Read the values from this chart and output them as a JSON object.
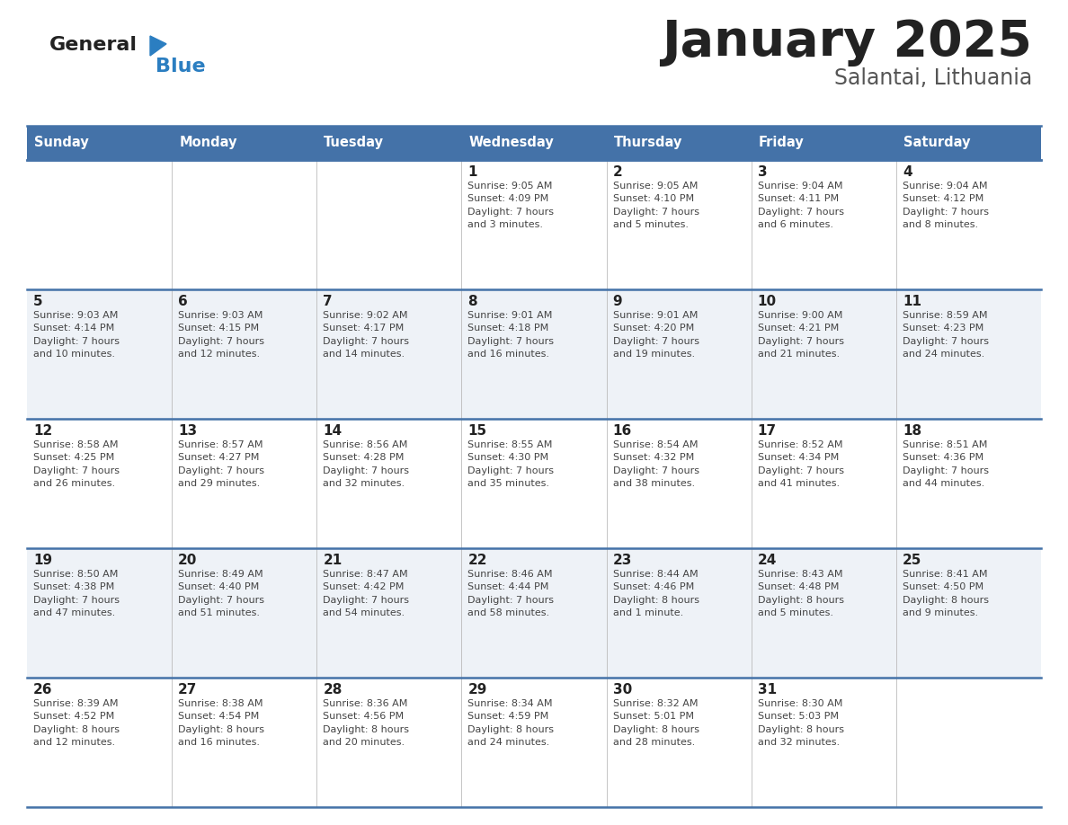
{
  "title": "January 2025",
  "subtitle": "Salantai, Lithuania",
  "header_bg": "#4472A8",
  "header_text_color": "#FFFFFF",
  "day_names": [
    "Sunday",
    "Monday",
    "Tuesday",
    "Wednesday",
    "Thursday",
    "Friday",
    "Saturday"
  ],
  "weeks": [
    [
      {
        "day": "",
        "info": ""
      },
      {
        "day": "",
        "info": ""
      },
      {
        "day": "",
        "info": ""
      },
      {
        "day": "1",
        "info": "Sunrise: 9:05 AM\nSunset: 4:09 PM\nDaylight: 7 hours\nand 3 minutes."
      },
      {
        "day": "2",
        "info": "Sunrise: 9:05 AM\nSunset: 4:10 PM\nDaylight: 7 hours\nand 5 minutes."
      },
      {
        "day": "3",
        "info": "Sunrise: 9:04 AM\nSunset: 4:11 PM\nDaylight: 7 hours\nand 6 minutes."
      },
      {
        "day": "4",
        "info": "Sunrise: 9:04 AM\nSunset: 4:12 PM\nDaylight: 7 hours\nand 8 minutes."
      }
    ],
    [
      {
        "day": "5",
        "info": "Sunrise: 9:03 AM\nSunset: 4:14 PM\nDaylight: 7 hours\nand 10 minutes."
      },
      {
        "day": "6",
        "info": "Sunrise: 9:03 AM\nSunset: 4:15 PM\nDaylight: 7 hours\nand 12 minutes."
      },
      {
        "day": "7",
        "info": "Sunrise: 9:02 AM\nSunset: 4:17 PM\nDaylight: 7 hours\nand 14 minutes."
      },
      {
        "day": "8",
        "info": "Sunrise: 9:01 AM\nSunset: 4:18 PM\nDaylight: 7 hours\nand 16 minutes."
      },
      {
        "day": "9",
        "info": "Sunrise: 9:01 AM\nSunset: 4:20 PM\nDaylight: 7 hours\nand 19 minutes."
      },
      {
        "day": "10",
        "info": "Sunrise: 9:00 AM\nSunset: 4:21 PM\nDaylight: 7 hours\nand 21 minutes."
      },
      {
        "day": "11",
        "info": "Sunrise: 8:59 AM\nSunset: 4:23 PM\nDaylight: 7 hours\nand 24 minutes."
      }
    ],
    [
      {
        "day": "12",
        "info": "Sunrise: 8:58 AM\nSunset: 4:25 PM\nDaylight: 7 hours\nand 26 minutes."
      },
      {
        "day": "13",
        "info": "Sunrise: 8:57 AM\nSunset: 4:27 PM\nDaylight: 7 hours\nand 29 minutes."
      },
      {
        "day": "14",
        "info": "Sunrise: 8:56 AM\nSunset: 4:28 PM\nDaylight: 7 hours\nand 32 minutes."
      },
      {
        "day": "15",
        "info": "Sunrise: 8:55 AM\nSunset: 4:30 PM\nDaylight: 7 hours\nand 35 minutes."
      },
      {
        "day": "16",
        "info": "Sunrise: 8:54 AM\nSunset: 4:32 PM\nDaylight: 7 hours\nand 38 minutes."
      },
      {
        "day": "17",
        "info": "Sunrise: 8:52 AM\nSunset: 4:34 PM\nDaylight: 7 hours\nand 41 minutes."
      },
      {
        "day": "18",
        "info": "Sunrise: 8:51 AM\nSunset: 4:36 PM\nDaylight: 7 hours\nand 44 minutes."
      }
    ],
    [
      {
        "day": "19",
        "info": "Sunrise: 8:50 AM\nSunset: 4:38 PM\nDaylight: 7 hours\nand 47 minutes."
      },
      {
        "day": "20",
        "info": "Sunrise: 8:49 AM\nSunset: 4:40 PM\nDaylight: 7 hours\nand 51 minutes."
      },
      {
        "day": "21",
        "info": "Sunrise: 8:47 AM\nSunset: 4:42 PM\nDaylight: 7 hours\nand 54 minutes."
      },
      {
        "day": "22",
        "info": "Sunrise: 8:46 AM\nSunset: 4:44 PM\nDaylight: 7 hours\nand 58 minutes."
      },
      {
        "day": "23",
        "info": "Sunrise: 8:44 AM\nSunset: 4:46 PM\nDaylight: 8 hours\nand 1 minute."
      },
      {
        "day": "24",
        "info": "Sunrise: 8:43 AM\nSunset: 4:48 PM\nDaylight: 8 hours\nand 5 minutes."
      },
      {
        "day": "25",
        "info": "Sunrise: 8:41 AM\nSunset: 4:50 PM\nDaylight: 8 hours\nand 9 minutes."
      }
    ],
    [
      {
        "day": "26",
        "info": "Sunrise: 8:39 AM\nSunset: 4:52 PM\nDaylight: 8 hours\nand 12 minutes."
      },
      {
        "day": "27",
        "info": "Sunrise: 8:38 AM\nSunset: 4:54 PM\nDaylight: 8 hours\nand 16 minutes."
      },
      {
        "day": "28",
        "info": "Sunrise: 8:36 AM\nSunset: 4:56 PM\nDaylight: 8 hours\nand 20 minutes."
      },
      {
        "day": "29",
        "info": "Sunrise: 8:34 AM\nSunset: 4:59 PM\nDaylight: 8 hours\nand 24 minutes."
      },
      {
        "day": "30",
        "info": "Sunrise: 8:32 AM\nSunset: 5:01 PM\nDaylight: 8 hours\nand 28 minutes."
      },
      {
        "day": "31",
        "info": "Sunrise: 8:30 AM\nSunset: 5:03 PM\nDaylight: 8 hours\nand 32 minutes."
      },
      {
        "day": "",
        "info": ""
      }
    ]
  ],
  "row_bg": [
    "#FFFFFF",
    "#EEF2F7",
    "#FFFFFF",
    "#EEF2F7",
    "#FFFFFF"
  ],
  "cell_text_color": "#444444",
  "day_num_color": "#222222",
  "border_color": "#4472A8",
  "grid_color": "#BBBBBB",
  "logo_general_color": "#222222",
  "logo_blue_color": "#2B7EC1",
  "title_color": "#222222",
  "subtitle_color": "#555555"
}
